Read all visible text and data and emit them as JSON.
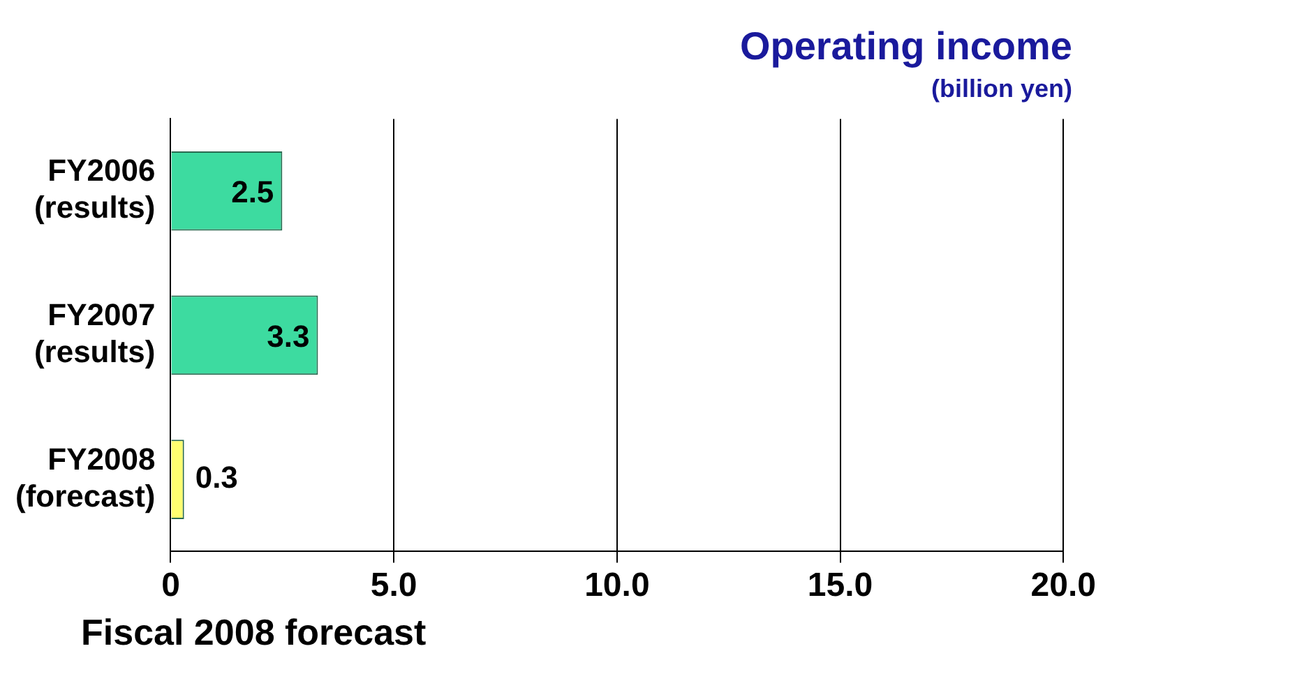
{
  "chart_data": {
    "type": "bar",
    "orientation": "horizontal",
    "title": "Operating income",
    "subtitle": "(billion yen)",
    "categories": [
      "FY2006\n(results)",
      "FY2007\n(results)",
      "FY2008\n(forecast)"
    ],
    "values": [
      2.5,
      3.3,
      0.3
    ],
    "colors": [
      "#3ddba0",
      "#3ddba0",
      "#ffff70"
    ],
    "xlim": [
      0,
      20
    ],
    "xticks": [
      0,
      {
        "value": 5,
        "label": "5.0"
      },
      {
        "value": 10,
        "label": "10.0"
      },
      {
        "value": 15,
        "label": "15.0"
      },
      {
        "value": 20,
        "label": "20.0"
      }
    ],
    "grid": "x",
    "data_labels": true,
    "annotations": [
      "Fiscal 2008 forecast"
    ]
  }
}
